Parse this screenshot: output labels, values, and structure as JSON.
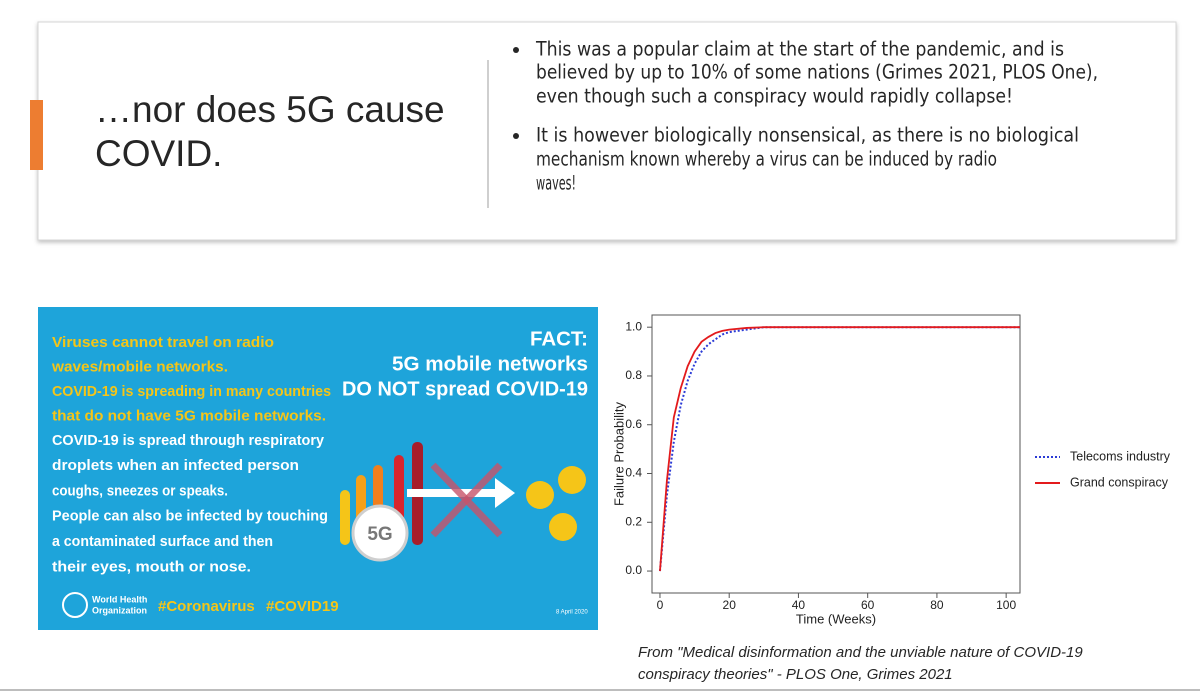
{
  "slide": {
    "title_lines": [
      "…nor does 5G cause",
      "COVID."
    ],
    "bullets": [
      [
        "This was a popular claim at the start of the pandemic, and is",
        "believed by up to 10% of some nations (Grimes 2021, PLOS One),",
        "even though such a conspiracy would rapidly collapse!"
      ],
      [
        "It is however biologically nonsensical, as there is no biological",
        "mechanism known whereby a virus can be induced by radio",
        "waves!"
      ]
    ],
    "caption_lines": [
      "From \"Medical disinformation and the unviable nature of COVID-19",
      "conspiracy theories\" - PLOS One, Grimes 2021"
    ]
  },
  "infographic": {
    "yellow_lines": [
      "Viruses cannot travel on radio",
      "waves/mobile networks.",
      "COVID-19 is spreading in many countries",
      "that do not have 5G mobile networks."
    ],
    "white_lines": [
      "COVID-19 is spread through respiratory",
      "droplets when an infected person",
      "coughs, sneezes or speaks.",
      "People can also be infected by touching",
      "a contaminated surface and then",
      "their eyes, mouth or nose."
    ],
    "fact_lines": [
      "FACT:",
      "5G mobile networks",
      "DO NOT spread COVID-19"
    ],
    "badge": "5G",
    "org_lines": [
      "World Health",
      "Organization"
    ],
    "hashtags": [
      "#Coronavirus",
      "#COVID19"
    ],
    "date": "8 April 2020"
  },
  "chart_data": {
    "type": "line",
    "xlabel": "Time (Weeks)",
    "ylabel": "Failure Probability",
    "x": [
      0,
      2,
      4,
      6,
      8,
      10,
      12,
      14,
      16,
      18,
      20,
      25,
      30,
      40,
      60,
      80,
      104
    ],
    "series": [
      {
        "name": "Telecoms industry",
        "color": "#2b3bd6",
        "dash": "dotted",
        "values": [
          0,
          0.31,
          0.53,
          0.68,
          0.78,
          0.85,
          0.9,
          0.93,
          0.95,
          0.97,
          0.98,
          0.99,
          1,
          1,
          1,
          1,
          1
        ]
      },
      {
        "name": "Grand conspiracy",
        "color": "#e31a1c",
        "dash": "solid",
        "values": [
          0,
          0.37,
          0.63,
          0.75,
          0.84,
          0.9,
          0.94,
          0.96,
          0.976,
          0.985,
          0.99,
          0.997,
          1,
          1,
          1,
          1,
          1
        ]
      }
    ],
    "xlim": [
      -2.3,
      104
    ],
    "ylim": [
      -0.09,
      1.05
    ],
    "xticks": [
      0,
      20,
      40,
      60,
      80,
      100
    ],
    "yticks": [
      {
        "value": 0,
        "label": "0.0"
      },
      {
        "value": 0.2,
        "label": "0.2"
      },
      {
        "value": 0.4,
        "label": "0.4"
      },
      {
        "value": 0.6,
        "label": "0.6"
      },
      {
        "value": 0.8,
        "label": "0.8"
      },
      {
        "value": 1,
        "label": "1.0"
      }
    ]
  }
}
